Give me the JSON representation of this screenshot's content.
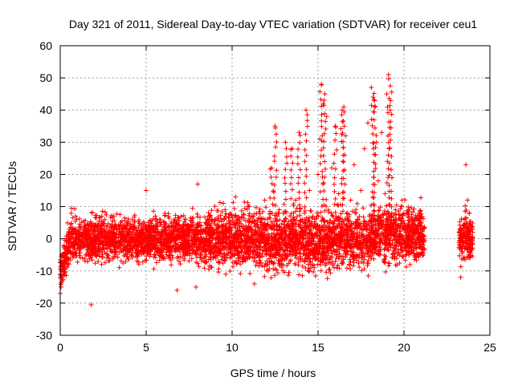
{
  "chart_data": {
    "type": "scatter",
    "title": "Day 321 of 2011, Sidereal Day-to-day VTEC variation (SDTVAR) for receiver ceu1",
    "xlabel": "GPS time / hours",
    "ylabel": "SDTVAR / TECUs",
    "xlim": [
      0,
      25
    ],
    "ylim": [
      -30,
      60
    ],
    "xticks": [
      0,
      5,
      10,
      15,
      20,
      25
    ],
    "yticks": [
      -30,
      -20,
      -10,
      0,
      10,
      20,
      30,
      40,
      50,
      60
    ],
    "xtick_labels": [
      "0",
      "5",
      "10",
      "15",
      "20",
      "25"
    ],
    "ytick_labels": [
      "-30",
      "-20",
      "-10",
      "0",
      "10",
      "20",
      "30",
      "40",
      "50",
      "60"
    ],
    "grid": true,
    "marker": "+",
    "color": "#ff0000",
    "legend": "none",
    "series": [
      {
        "name": "SDTVAR",
        "x": [
          0.0,
          0.05,
          0.1,
          0.15,
          0.2,
          0.3,
          0.4,
          0.5,
          0.6,
          0.8,
          1.0,
          1.2,
          1.5,
          1.8,
          1.85,
          2.0,
          2.2,
          2.5,
          2.8,
          3.0,
          3.3,
          3.6,
          3.9,
          4.2,
          4.5,
          4.8,
          5.0,
          5.3,
          5.6,
          5.9,
          6.2,
          6.5,
          6.8,
          7.1,
          7.4,
          7.7,
          7.9,
          8.0,
          8.2,
          8.5,
          8.8,
          9.0,
          9.3,
          9.6,
          9.9,
          10.2,
          10.5,
          10.8,
          11.0,
          11.3,
          11.6,
          11.9,
          12.1,
          12.3,
          12.5,
          12.7,
          12.9,
          13.1,
          13.3,
          13.5,
          13.7,
          13.9,
          14.1,
          14.3,
          14.5,
          14.7,
          14.9,
          15.0,
          15.1,
          15.2,
          15.3,
          15.4,
          15.5,
          15.6,
          15.8,
          16.0,
          16.2,
          16.4,
          16.5,
          16.6,
          16.7,
          16.9,
          17.1,
          17.3,
          17.5,
          17.7,
          17.9,
          18.1,
          18.2,
          18.3,
          18.4,
          18.5,
          18.7,
          18.9,
          19.0,
          19.1,
          19.2,
          19.3,
          19.5,
          19.7,
          19.9,
          20.1,
          20.3,
          20.5,
          20.7,
          20.9,
          21.1,
          23.3,
          23.4,
          23.5,
          23.6,
          23.7,
          23.8,
          23.9
        ],
        "y": [
          -17,
          -15,
          -12,
          -8,
          -5,
          -3,
          -6,
          2,
          -4,
          3,
          -2,
          1,
          -5,
          -20.5,
          8,
          -3,
          4,
          -1,
          2,
          -4,
          3,
          -2,
          5,
          -3,
          2,
          -1,
          15,
          3,
          -4,
          2,
          -2,
          4,
          -16,
          3,
          -2,
          5,
          -15,
          17,
          4,
          -3,
          6,
          2,
          -1,
          7,
          3,
          13,
          -2,
          4,
          10,
          -14,
          3,
          12,
          -10,
          22,
          35,
          8,
          -5,
          30,
          4,
          28,
          12,
          33,
          6,
          40,
          15,
          7,
          -6,
          20,
          31,
          48,
          42,
          45,
          38,
          9,
          22,
          35,
          14,
          40,
          41,
          32,
          8,
          12,
          23,
          6,
          15,
          28,
          36,
          47,
          44,
          41,
          30,
          18,
          33,
          14,
          45,
          51,
          40,
          19,
          9,
          4,
          12,
          -3,
          9,
          3,
          6,
          -5,
          1,
          -12,
          -4,
          6,
          23,
          12,
          8,
          -3
        ]
      }
    ]
  }
}
